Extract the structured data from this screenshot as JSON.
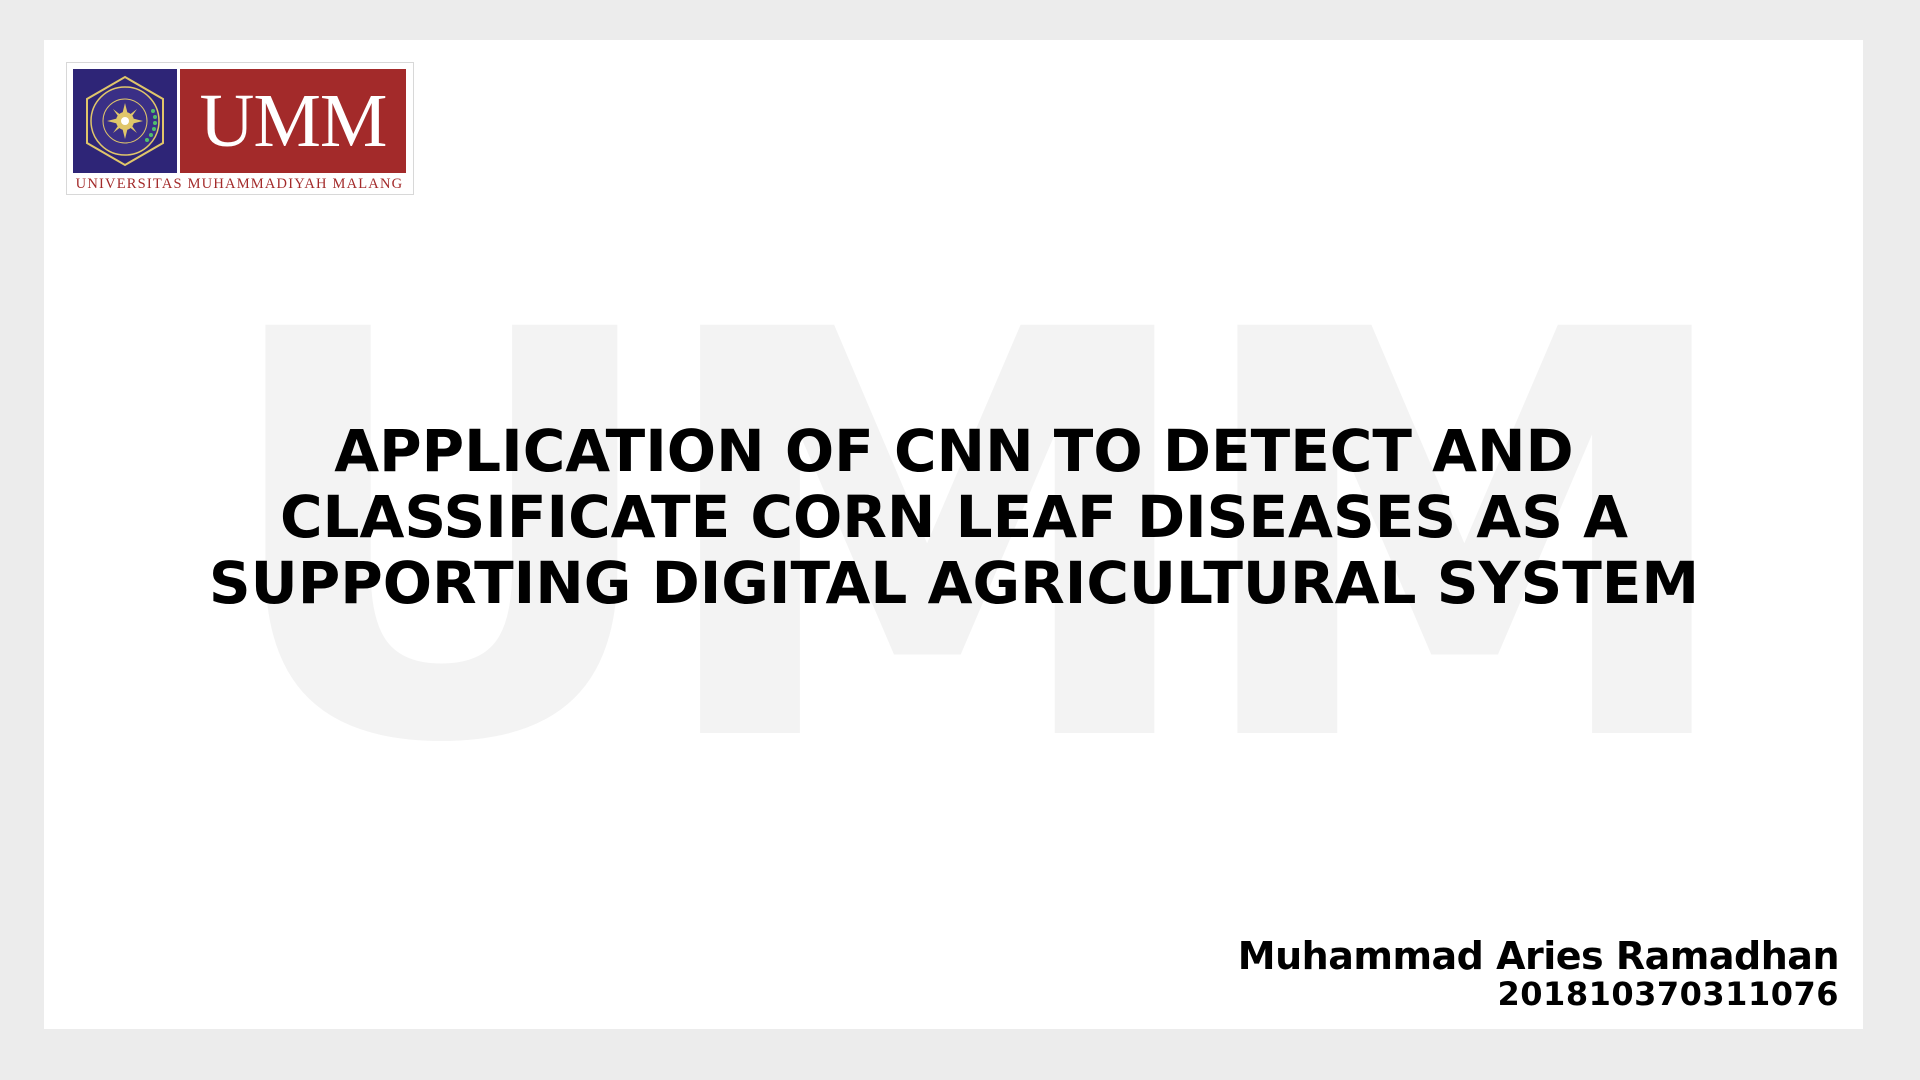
{
  "logo": {
    "wordmark": "UMM",
    "caption": "UNIVERSITAS MUHAMMADIYAH MALANG",
    "emblem_icon": "umm-emblem-icon",
    "brand_red": "#a32a2a",
    "brand_blue": "#2e2577"
  },
  "watermark": {
    "text": "UMM"
  },
  "slide": {
    "title": "APPLICATION OF CNN TO DETECT AND CLASSIFICATE CORN LEAF DISEASES AS A SUPPORTING DIGITAL AGRICULTURAL SYSTEM",
    "author_name": "Muhammad Aries Ramadhan",
    "author_id": "201810370311076"
  }
}
